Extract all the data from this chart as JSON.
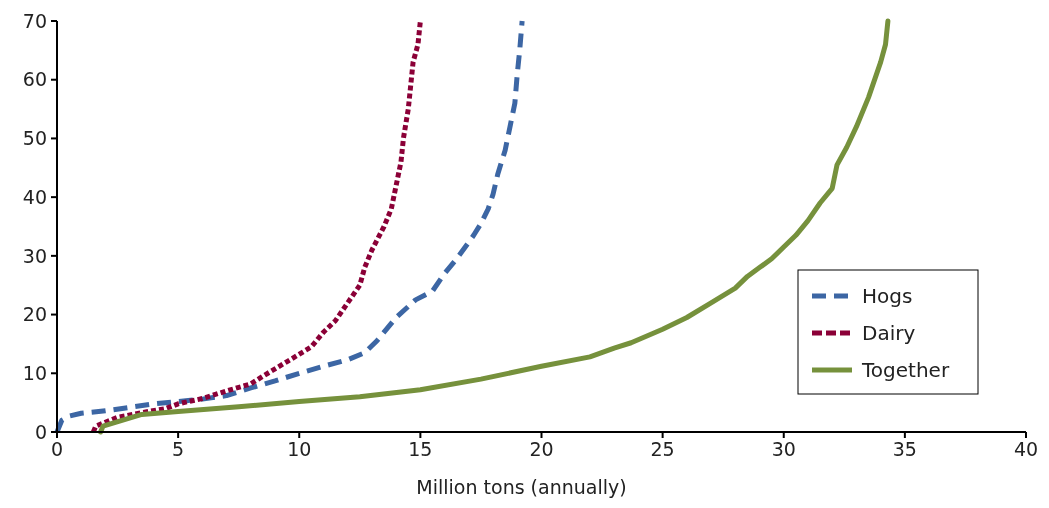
{
  "chart_data": {
    "type": "line",
    "xlabel": "Million tons (annually)",
    "xlim": [
      0,
      40
    ],
    "xticks": [
      0,
      5,
      10,
      15,
      20,
      25,
      30,
      35,
      40
    ],
    "ylim": [
      0,
      70
    ],
    "yticks": [
      0,
      10,
      20,
      30,
      40,
      50,
      60,
      70
    ],
    "grid": false,
    "legend": "right",
    "series": [
      {
        "name": "Hogs",
        "color": "#3c66a4",
        "line_style": "dashed",
        "x": [
          0,
          0.2,
          0.5,
          1,
          2,
          3,
          4,
          5,
          6,
          7,
          8,
          9,
          10,
          11,
          12,
          12.7,
          13.2,
          14,
          14.8,
          15.5,
          16,
          16.5,
          17.2,
          17.5,
          17.8,
          18,
          18.2,
          18.5,
          18.7,
          18.9,
          19,
          19.1,
          19.2
        ],
        "values": [
          0,
          2,
          2.7,
          3.2,
          3.6,
          4.2,
          4.8,
          5.2,
          5.6,
          6.2,
          7.5,
          8.7,
          10,
          11.2,
          12.3,
          13.5,
          15.5,
          19.5,
          22.5,
          24,
          27,
          29.5,
          33.5,
          35.5,
          38,
          40.5,
          44,
          48,
          52,
          56,
          61,
          65,
          70
        ]
      },
      {
        "name": "Dairy",
        "color": "#8b0037",
        "line_style": "dotted",
        "x": [
          1.5,
          1.6,
          2.5,
          3.5,
          4.5,
          5,
          6,
          7,
          8,
          8.5,
          9.5,
          10.5,
          11,
          11.5,
          12,
          12.5,
          12.7,
          13,
          13.5,
          13.8,
          14,
          14.2,
          14.3,
          14.5,
          14.6,
          14.7,
          14.9,
          15
        ],
        "values": [
          0,
          1,
          2.5,
          3.3,
          4,
          4.8,
          5.7,
          7,
          8.2,
          9.5,
          12,
          14.5,
          17,
          19,
          22,
          25,
          28,
          31,
          35,
          38,
          42,
          46,
          50,
          55,
          59,
          63,
          66,
          70
        ]
      },
      {
        "name": "Together",
        "color": "#76913c",
        "line_style": "solid",
        "x": [
          1.8,
          1.9,
          3.5,
          5,
          7.5,
          10,
          12.5,
          15,
          17.5,
          20,
          22,
          23,
          23.7,
          25,
          26,
          27,
          28,
          28.5,
          29,
          29.5,
          30,
          30.5,
          31,
          31.5,
          32,
          32.2,
          32.6,
          33,
          33.5,
          34,
          34.2,
          34.3
        ],
        "values": [
          0,
          1,
          3,
          3.5,
          4.3,
          5.2,
          6,
          7.2,
          9,
          11.2,
          12.8,
          14.3,
          15.2,
          17.5,
          19.5,
          22,
          24.5,
          26.5,
          28,
          29.5,
          31.5,
          33.5,
          36,
          39,
          41.5,
          45.5,
          48.5,
          52,
          57,
          63,
          66,
          70
        ]
      }
    ]
  }
}
